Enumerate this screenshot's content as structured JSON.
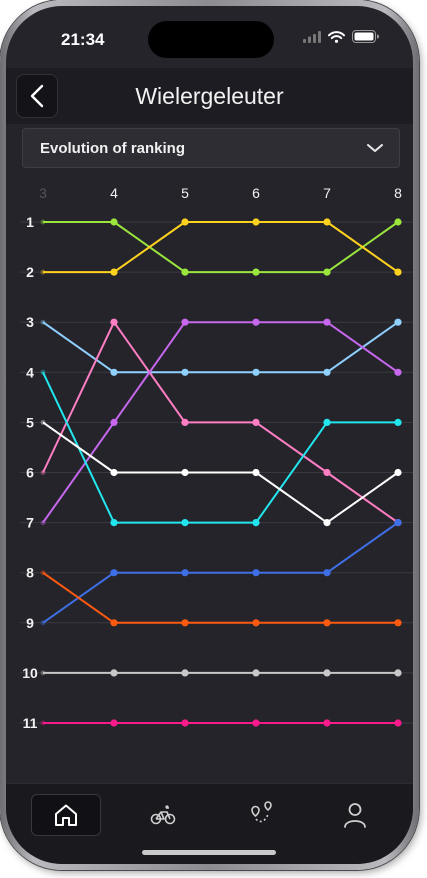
{
  "status_bar": {
    "time": "21:34"
  },
  "header": {
    "title": "Wielergeleuter"
  },
  "selector": {
    "label": "Evolution of ranking"
  },
  "tabs": [
    "home",
    "bike",
    "route-map",
    "profile"
  ],
  "chart_data": {
    "type": "line",
    "title": "Evolution of ranking",
    "xlabel": "",
    "ylabel": "",
    "x": [
      3,
      4,
      5,
      6,
      7,
      8
    ],
    "y_ticks": [
      1,
      2,
      3,
      4,
      5,
      6,
      7,
      8,
      9,
      10,
      11
    ],
    "ylim": [
      1,
      11
    ],
    "y_inverted": true,
    "grid": true,
    "series": [
      {
        "color": "#9be63c",
        "values": [
          1,
          1,
          2,
          2,
          2,
          1
        ]
      },
      {
        "color": "#ffd21f",
        "values": [
          2,
          2,
          1,
          1,
          1,
          2
        ]
      },
      {
        "color": "#8fd0ff",
        "values": [
          3,
          4,
          4,
          4,
          4,
          3
        ]
      },
      {
        "color": "#ff7ec4",
        "values": [
          6,
          3,
          5,
          5,
          6,
          7
        ]
      },
      {
        "color": "#c667ee",
        "values": [
          7,
          5,
          3,
          3,
          3,
          4
        ]
      },
      {
        "color": "#22e6ee",
        "values": [
          4,
          7,
          7,
          7,
          5,
          5
        ]
      },
      {
        "color": "#ffffff",
        "values": [
          5,
          6,
          6,
          6,
          7,
          6
        ]
      },
      {
        "color": "#3f6fe6",
        "values": [
          9,
          8,
          8,
          8,
          8,
          7
        ]
      },
      {
        "color": "#ff5a0f",
        "values": [
          8,
          9,
          9,
          9,
          9,
          9
        ]
      },
      {
        "color": "#c8c8c8",
        "values": [
          10,
          10,
          10,
          10,
          10,
          10
        ]
      },
      {
        "color": "#ff1a8c",
        "values": [
          11,
          11,
          11,
          11,
          11,
          11
        ]
      }
    ]
  }
}
